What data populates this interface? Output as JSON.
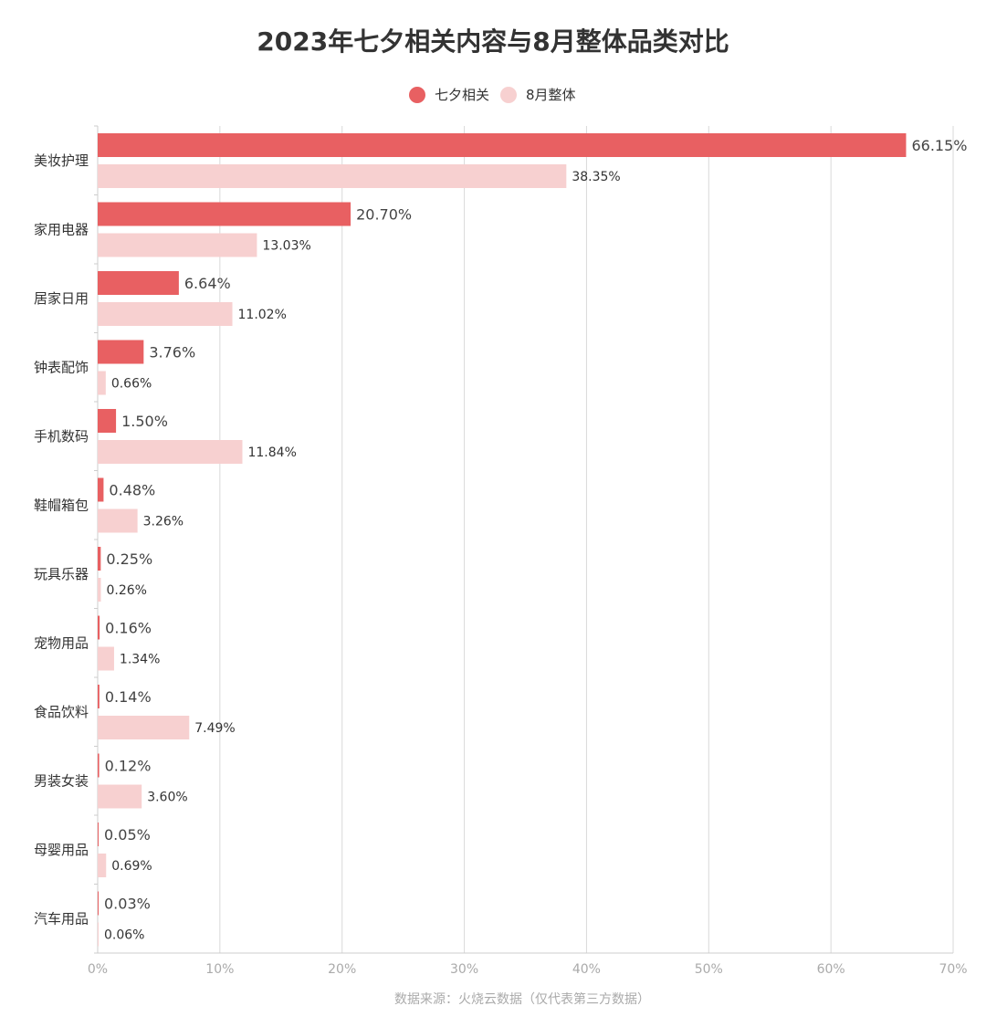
{
  "chart_data": {
    "type": "bar",
    "orientation": "horizontal",
    "title": "2023年七夕相关内容与8月整体品类对比",
    "categories": [
      "美妆护理",
      "家用电器",
      "居家日用",
      "钟表配饰",
      "手机数码",
      "鞋帽箱包",
      "玩具乐器",
      "宠物用品",
      "食品饮料",
      "男装女装",
      "母婴用品",
      "汽车用品"
    ],
    "series": [
      {
        "name": "七夕相关",
        "color": "#e86062",
        "values": [
          66.15,
          20.7,
          6.64,
          3.76,
          1.5,
          0.48,
          0.25,
          0.16,
          0.14,
          0.12,
          0.05,
          0.03
        ],
        "labels": [
          "66.15%",
          "20.70%",
          "6.64%",
          "3.76%",
          "1.50%",
          "0.48%",
          "0.25%",
          "0.16%",
          "0.14%",
          "0.12%",
          "0.05%",
          "0.03%"
        ]
      },
      {
        "name": "8月整体",
        "color": "#f7d0d0",
        "values": [
          38.35,
          13.03,
          11.02,
          0.66,
          11.84,
          3.26,
          0.26,
          1.34,
          7.49,
          3.6,
          0.69,
          0.06
        ],
        "labels": [
          "38.35%",
          "13.03%",
          "11.02%",
          "0.66%",
          "11.84%",
          "3.26%",
          "0.26%",
          "1.34%",
          "7.49%",
          "3.60%",
          "0.69%",
          "0.06%"
        ]
      }
    ],
    "xlim": [
      0,
      70
    ],
    "xticks": [
      0,
      10,
      20,
      30,
      40,
      50,
      60,
      70
    ],
    "xtick_labels": [
      "0%",
      "10%",
      "20%",
      "30%",
      "40%",
      "50%",
      "60%",
      "70%"
    ],
    "grid": true,
    "legend_position": "top-center"
  },
  "footer": {
    "source": "数据来源：火烧云数据（仅代表第三方数据）"
  }
}
